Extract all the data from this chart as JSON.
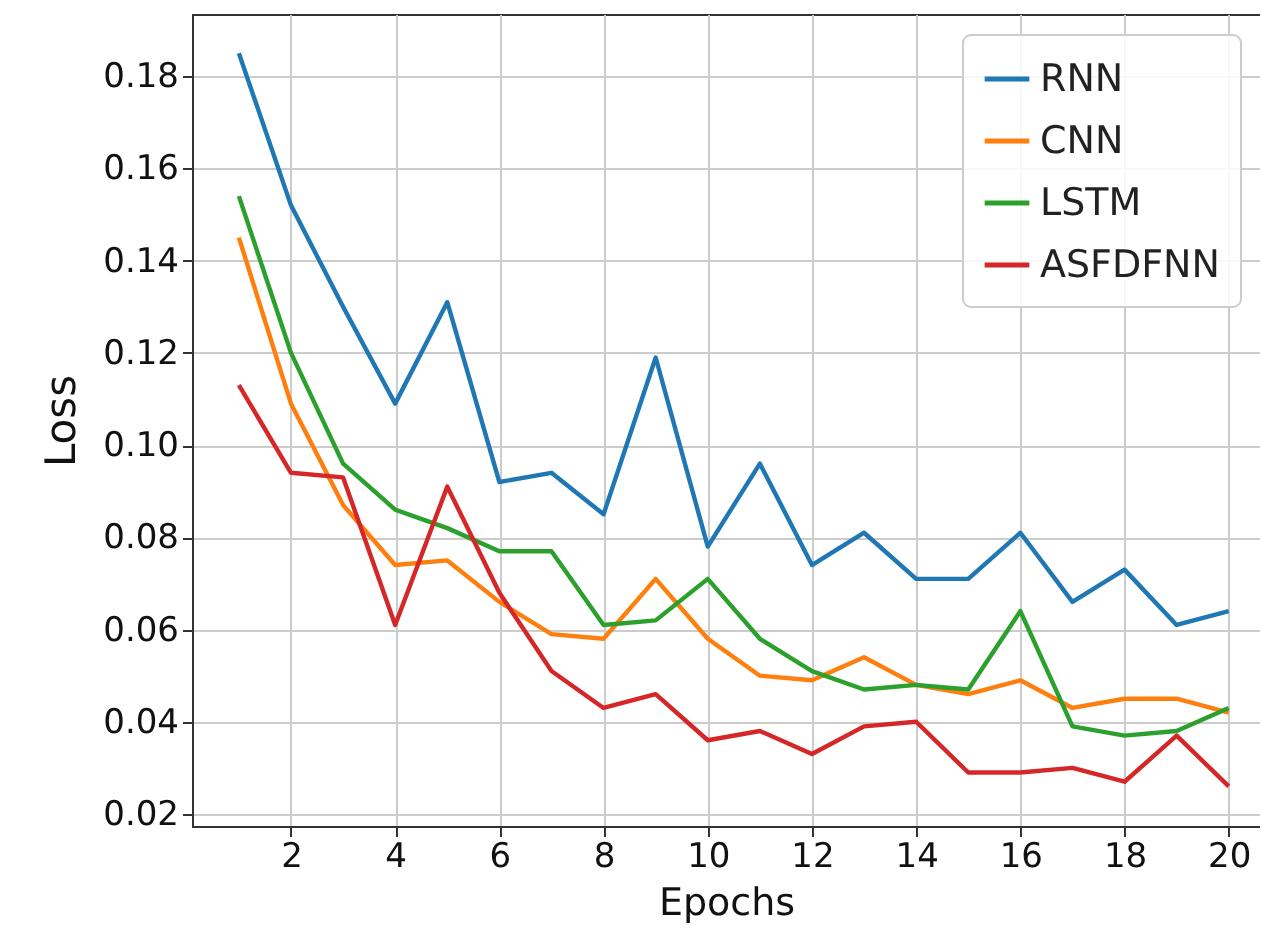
{
  "chart_data": {
    "type": "line",
    "xlabel": "Epochs",
    "ylabel": "Loss",
    "x": [
      1,
      2,
      3,
      4,
      5,
      6,
      7,
      8,
      9,
      10,
      11,
      12,
      13,
      14,
      15,
      16,
      17,
      18,
      19,
      20
    ],
    "series": [
      {
        "name": "RNN",
        "color": "#1f77b4",
        "values": [
          0.185,
          0.152,
          0.13,
          0.109,
          0.131,
          0.092,
          0.094,
          0.085,
          0.119,
          0.078,
          0.096,
          0.074,
          0.081,
          0.071,
          0.071,
          0.081,
          0.066,
          0.073,
          0.061,
          0.064
        ]
      },
      {
        "name": "CNN",
        "color": "#ff7f0e",
        "values": [
          0.145,
          0.109,
          0.087,
          0.074,
          0.075,
          0.066,
          0.059,
          0.058,
          0.071,
          0.058,
          0.05,
          0.049,
          0.054,
          0.048,
          0.046,
          0.049,
          0.043,
          0.045,
          0.045,
          0.042
        ]
      },
      {
        "name": "LSTM",
        "color": "#2ca02c",
        "values": [
          0.154,
          0.12,
          0.096,
          0.086,
          0.082,
          0.077,
          0.077,
          0.061,
          0.062,
          0.071,
          0.058,
          0.051,
          0.047,
          0.048,
          0.047,
          0.064,
          0.039,
          0.037,
          0.038,
          0.043
        ]
      },
      {
        "name": "ASFDFNN",
        "color": "#d62728",
        "values": [
          0.113,
          0.094,
          0.093,
          0.061,
          0.091,
          0.068,
          0.051,
          0.043,
          0.046,
          0.036,
          0.038,
          0.033,
          0.039,
          0.04,
          0.029,
          0.029,
          0.03,
          0.027,
          0.037,
          0.026
        ]
      }
    ],
    "xlim": [
      0.1,
      20.6
    ],
    "xticks": [
      2,
      4,
      6,
      8,
      10,
      12,
      14,
      16,
      18,
      20
    ],
    "ylim": [
      0.0174,
      0.1935
    ],
    "yticks": [
      0.02,
      0.04,
      0.06,
      0.08,
      {
        "value": 0.1,
        "label": "0.10"
      },
      0.12,
      0.14,
      0.16,
      0.18
    ],
    "grid": true,
    "legend": "top right",
    "line_style": "solid",
    "marker": "none"
  }
}
